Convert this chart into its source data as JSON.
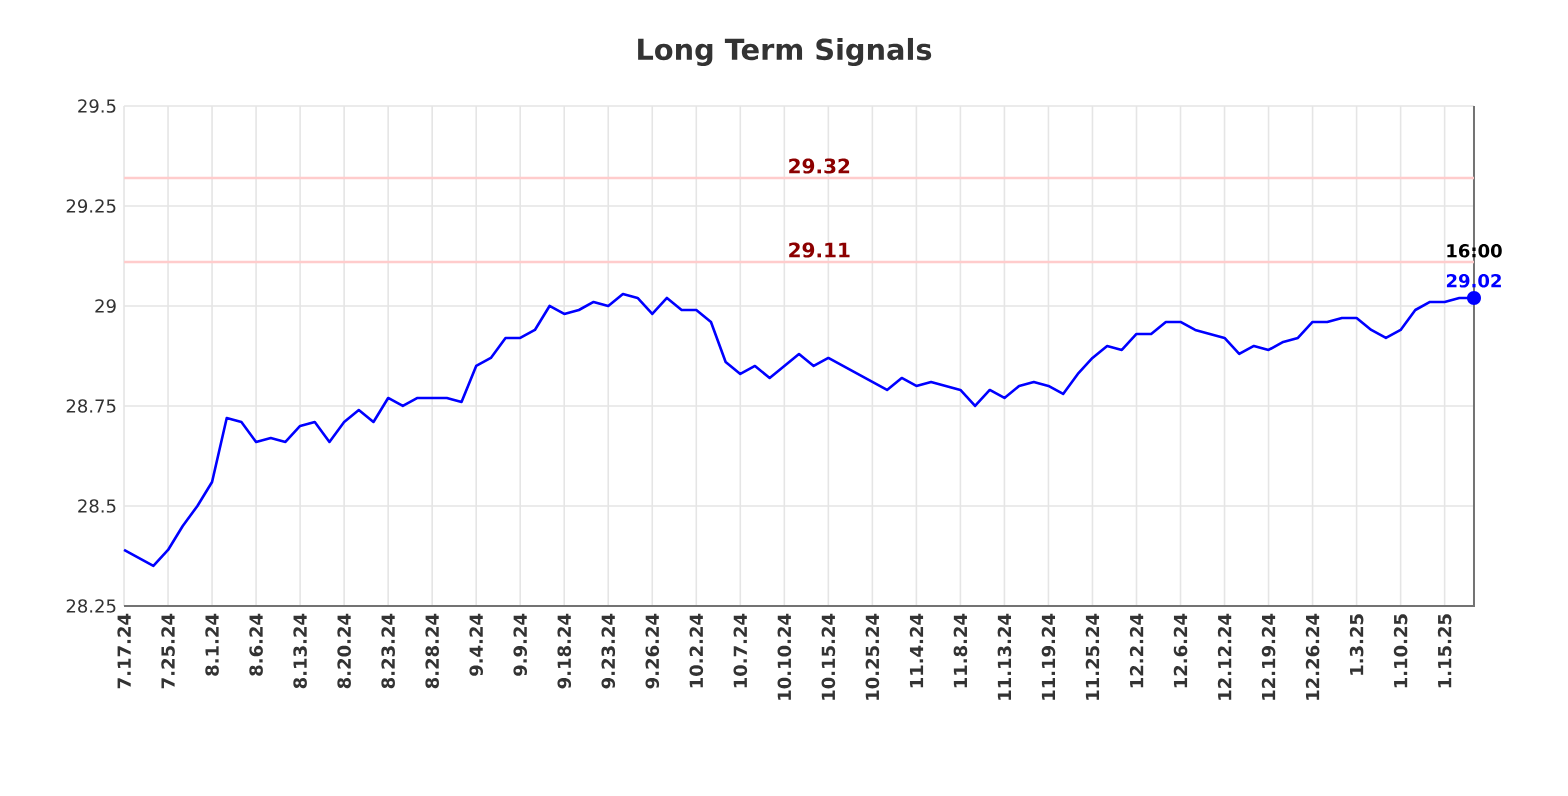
{
  "chart_data": {
    "type": "line",
    "title": "Long Term Signals",
    "categories": [
      "7.17.24",
      null,
      null,
      "7.25.24",
      null,
      null,
      "8.1.24",
      null,
      null,
      "8.6.24",
      null,
      null,
      "8.13.24",
      null,
      null,
      "8.20.24",
      null,
      null,
      "8.23.24",
      null,
      null,
      "8.28.24",
      null,
      null,
      "9.4.24",
      null,
      null,
      "9.9.24",
      null,
      null,
      "9.18.24",
      null,
      null,
      "9.23.24",
      null,
      null,
      "9.26.24",
      null,
      null,
      "10.2.24",
      null,
      null,
      "10.7.24",
      null,
      null,
      "10.10.24",
      null,
      null,
      "10.15.24",
      null,
      null,
      "10.25.24",
      null,
      null,
      "11.4.24",
      null,
      null,
      "11.8.24",
      null,
      null,
      "11.13.24",
      null,
      null,
      "11.19.24",
      null,
      null,
      "11.25.24",
      null,
      null,
      "12.2.24",
      null,
      null,
      "12.6.24",
      null,
      null,
      "12.12.24",
      null,
      null,
      "12.19.24",
      null,
      null,
      "12.26.24",
      null,
      null,
      "1.3.25",
      null,
      null,
      "1.10.25",
      null,
      null,
      "1.15.25",
      null,
      null
    ],
    "series": [
      {
        "color": "#0000ff",
        "values": [
          28.39,
          28.37,
          28.35,
          28.39,
          28.45,
          28.5,
          28.56,
          28.72,
          28.71,
          28.66,
          28.67,
          28.66,
          28.7,
          28.71,
          28.66,
          28.71,
          28.74,
          28.71,
          28.77,
          28.75,
          28.77,
          28.77,
          28.77,
          28.76,
          28.85,
          28.87,
          28.92,
          28.92,
          28.94,
          29.0,
          28.98,
          28.99,
          29.01,
          29.0,
          29.03,
          29.02,
          28.98,
          29.02,
          28.99,
          28.99,
          28.96,
          28.86,
          28.83,
          28.85,
          28.82,
          28.85,
          28.88,
          28.85,
          28.87,
          28.85,
          28.83,
          28.81,
          28.79,
          28.82,
          28.8,
          28.81,
          28.8,
          28.79,
          28.75,
          28.79,
          28.77,
          28.8,
          28.81,
          28.8,
          28.78,
          28.83,
          28.87,
          28.9,
          28.89,
          28.93,
          28.93,
          28.96,
          28.96,
          28.94,
          28.93,
          28.92,
          28.88,
          28.9,
          28.89,
          28.91,
          28.92,
          28.96,
          28.96,
          28.97,
          28.97,
          28.94,
          28.92,
          28.94,
          28.99,
          29.01,
          29.01,
          29.02,
          29.02
        ]
      }
    ],
    "ylim": [
      28.25,
      29.5
    ],
    "yticks": [
      28.25,
      28.5,
      28.75,
      29,
      29.25,
      29.5
    ],
    "grid": true,
    "marker": "none",
    "line_style": "solid",
    "ref_lines": [
      {
        "axis": "y",
        "value": 29.32,
        "label": "29.32",
        "color": "#ffcccc"
      },
      {
        "axis": "y",
        "value": 29.11,
        "label": "29.11",
        "color": "#ffcccc"
      }
    ],
    "annotations": [
      "16:00",
      {
        "text": "29.02",
        "y": 29.02
      }
    ]
  }
}
